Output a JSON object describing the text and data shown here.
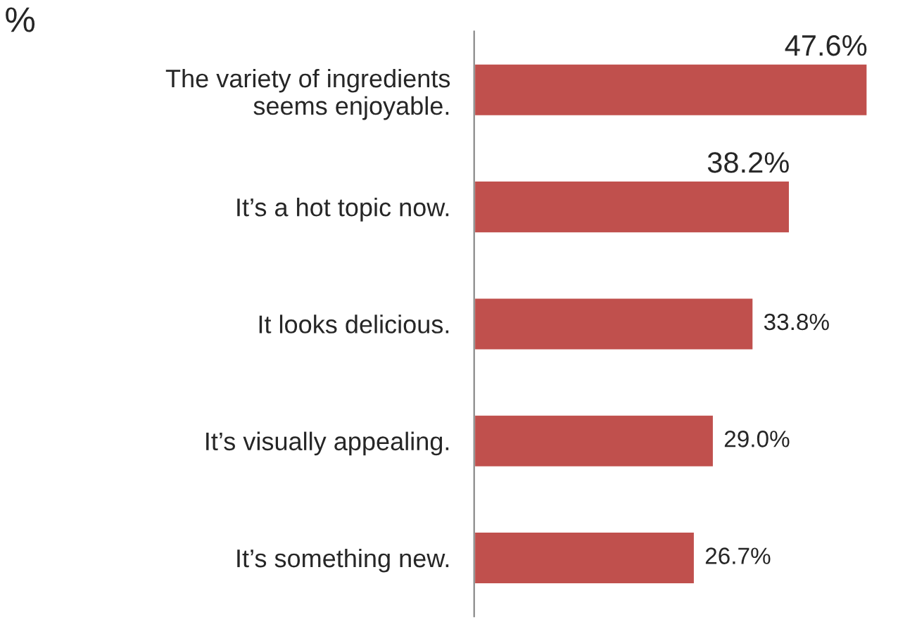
{
  "chart_data": {
    "type": "bar",
    "orientation": "horizontal",
    "categories": [
      "The variety of ingredients\nseems enjoyable.",
      "It’s a hot topic now.",
      "It looks delicious.",
      "It’s visually appealing.",
      "It’s something new."
    ],
    "values": [
      47.6,
      38.2,
      33.8,
      29.0,
      26.7
    ],
    "value_labels": [
      "47.6%",
      "38.2%",
      "33.8%",
      "29.0%",
      "26.7%"
    ],
    "color": "#c0504d",
    "annotations": [
      "%"
    ],
    "legend": false,
    "grid": false
  }
}
